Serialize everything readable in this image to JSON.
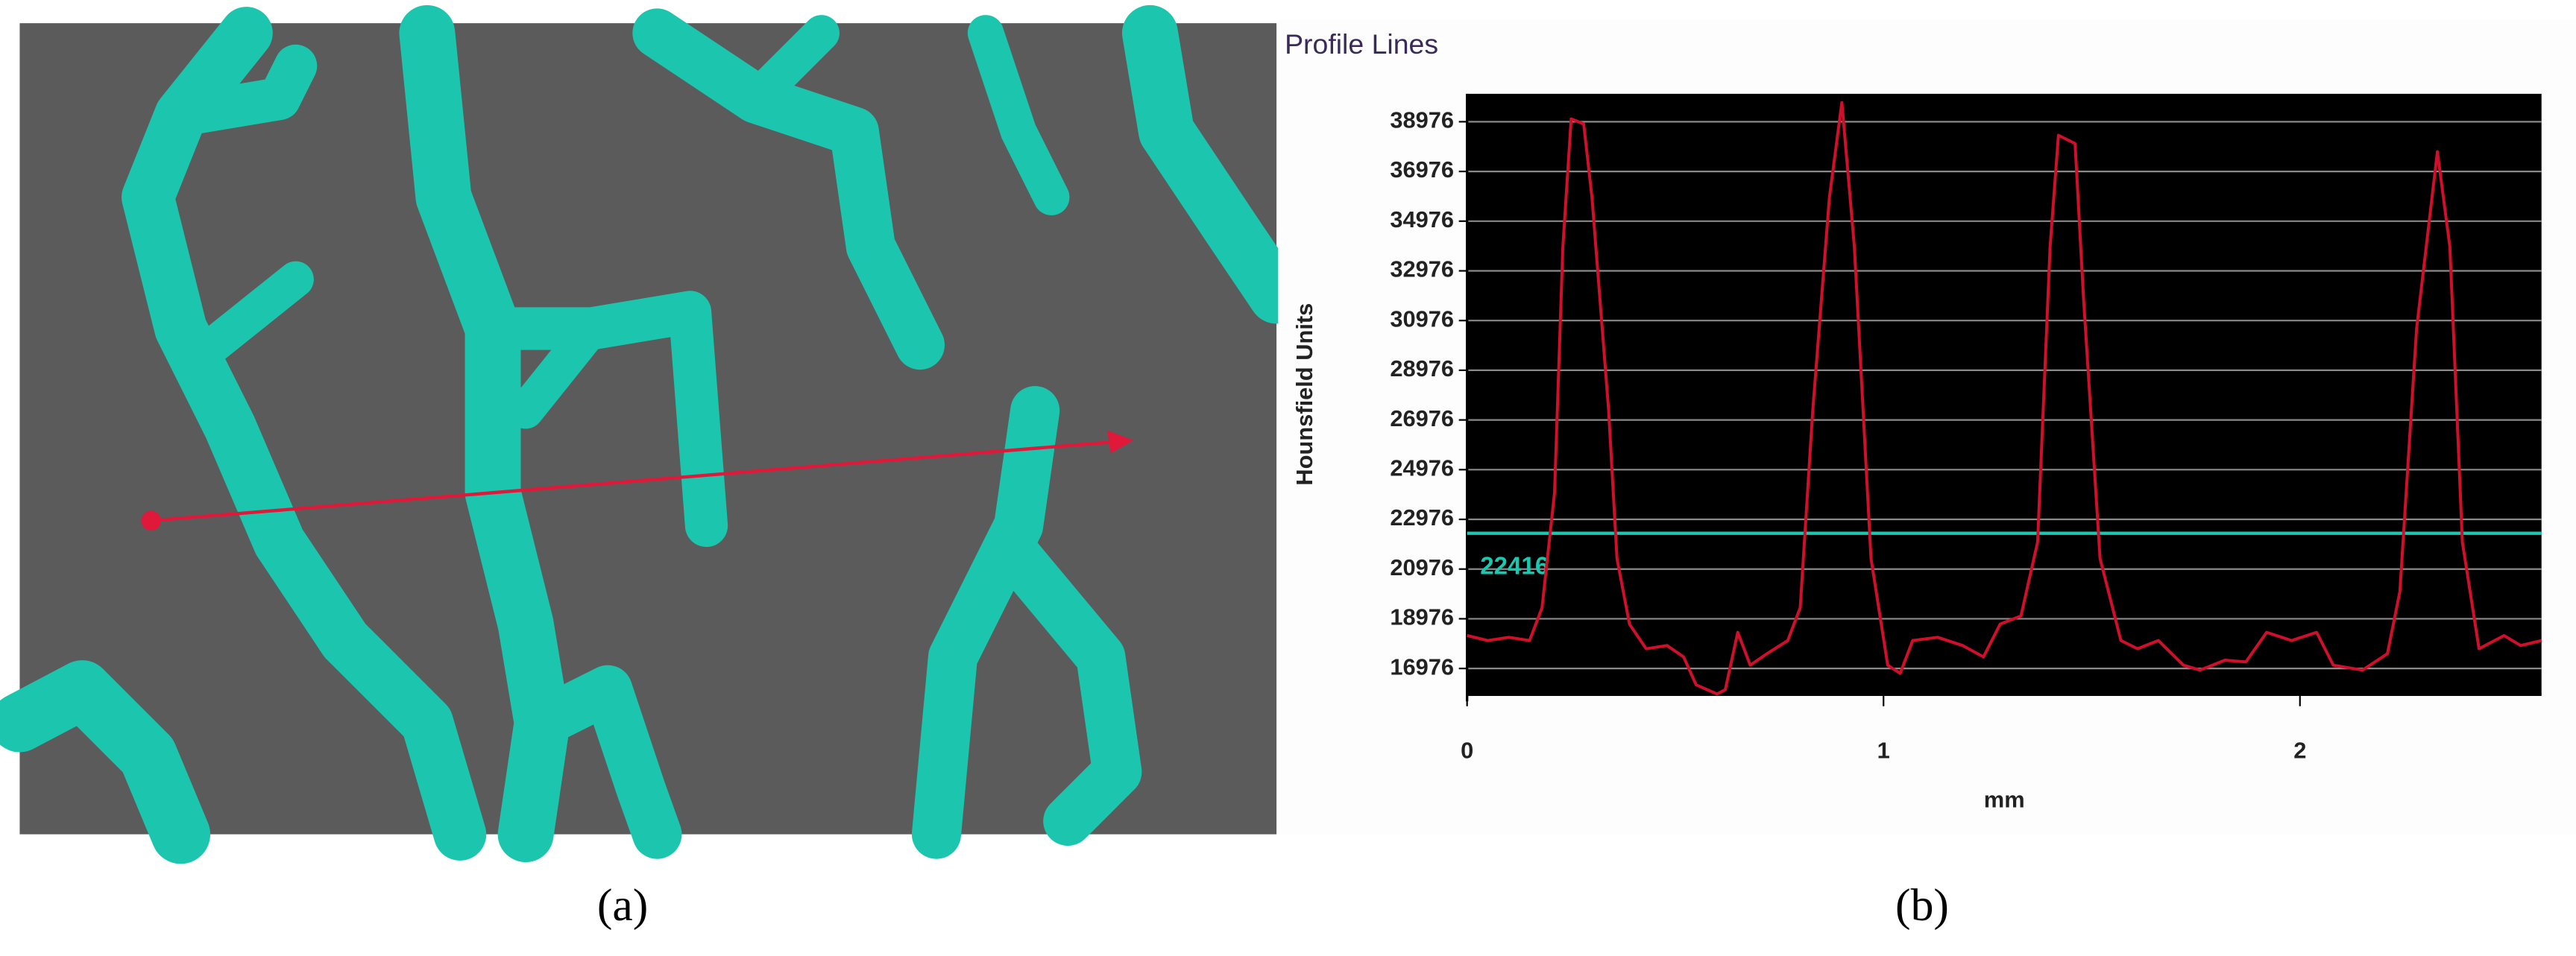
{
  "chart_data": {
    "type": "line",
    "title": "Profile Lines",
    "xlabel": "mm",
    "ylabel": "Hounsfield Units",
    "x": [
      0,
      0.05,
      0.1,
      0.15,
      0.18,
      0.21,
      0.23,
      0.25,
      0.28,
      0.3,
      0.34,
      0.36,
      0.39,
      0.43,
      0.48,
      0.52,
      0.55,
      0.6,
      0.62,
      0.65,
      0.68,
      0.72,
      0.77,
      0.8,
      0.83,
      0.87,
      0.9,
      0.93,
      0.97,
      1.01,
      1.04,
      1.07,
      1.13,
      1.19,
      1.24,
      1.28,
      1.33,
      1.37,
      1.4,
      1.42,
      1.46,
      1.48,
      1.52,
      1.57,
      1.61,
      1.66,
      1.72,
      1.76,
      1.82,
      1.87,
      1.92,
      1.98,
      2.04,
      2.08,
      2.15,
      2.21,
      2.24,
      2.28,
      2.33,
      2.36,
      2.39,
      2.43,
      2.49,
      2.53,
      2.58
    ],
    "series": [
      {
        "color": "#d0102a",
        "values": [
          18300,
          18100,
          18230,
          18100,
          19420,
          24040,
          33940,
          39090,
          38890,
          35920,
          27340,
          21400,
          18760,
          17770,
          17900,
          17440,
          16320,
          15950,
          16120,
          18430,
          17110,
          17570,
          18100,
          19420,
          27340,
          35920,
          39750,
          33940,
          21400,
          17110,
          16780,
          18100,
          18230,
          17900,
          17440,
          18760,
          19090,
          22060,
          33940,
          38430,
          38100,
          31960,
          21400,
          18100,
          17770,
          18100,
          17110,
          16910,
          17310,
          17240,
          18430,
          18100,
          18430,
          17110,
          16910,
          17570,
          20080,
          30640,
          37770,
          33940,
          22060,
          17770,
          18300,
          17900,
          18100
        ]
      }
    ],
    "threshold": {
      "value": 22416,
      "color": "#1ac8b0"
    },
    "xlim": [
      0,
      2.58
    ],
    "xticks": [
      0,
      1,
      2
    ],
    "ylim": [
      15920,
      40100
    ],
    "yticks": [
      16976,
      18976,
      20976,
      22976,
      24976,
      26976,
      28976,
      30976,
      32976,
      34976,
      36976,
      38976
    ],
    "grid": true
  },
  "captions": [
    "(a)",
    "(b)"
  ]
}
